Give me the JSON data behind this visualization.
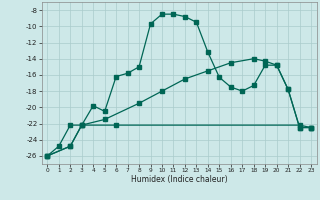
{
  "xlabel": "Humidex (Indice chaleur)",
  "bg_color": "#cde8e8",
  "grid_color": "#aacccc",
  "line_color": "#006655",
  "ylim": [
    -27,
    -7
  ],
  "xlim": [
    -0.5,
    23.5
  ],
  "yticks": [
    -26,
    -24,
    -22,
    -20,
    -18,
    -16,
    -14,
    -12,
    -10,
    -8
  ],
  "xticks": [
    0,
    1,
    2,
    3,
    4,
    5,
    6,
    7,
    8,
    9,
    10,
    11,
    12,
    13,
    14,
    15,
    16,
    17,
    18,
    19,
    20,
    21,
    22,
    23
  ],
  "line1_x": [
    0,
    1,
    2,
    3,
    4,
    5,
    6,
    7,
    8,
    9,
    10,
    11,
    12,
    13,
    14,
    15,
    16,
    17,
    18,
    19,
    20,
    21,
    22,
    23
  ],
  "line1_y": [
    -26,
    -24.8,
    -22.2,
    -22.2,
    -19.8,
    -20.5,
    -16.2,
    -15.8,
    -15.0,
    -9.7,
    -8.5,
    -8.5,
    -8.8,
    -9.5,
    -13.2,
    -16.3,
    -17.5,
    -18.0,
    -17.3,
    -14.8,
    -14.8,
    -17.8,
    -22.5,
    -22.5
  ],
  "line2_x": [
    0,
    2,
    3,
    6,
    22,
    23
  ],
  "line2_y": [
    -26,
    -24.8,
    -22.2,
    -22.2,
    -22.2,
    -22.5
  ],
  "line3_x": [
    0,
    2,
    3,
    5,
    8,
    10,
    12,
    14,
    16,
    18,
    19,
    20,
    21,
    22,
    23
  ],
  "line3_y": [
    -26,
    -24.8,
    -22.2,
    -21.5,
    -19.5,
    -18.0,
    -16.5,
    -15.5,
    -14.5,
    -14.0,
    -14.3,
    -14.8,
    -17.8,
    -22.5,
    -22.5
  ]
}
